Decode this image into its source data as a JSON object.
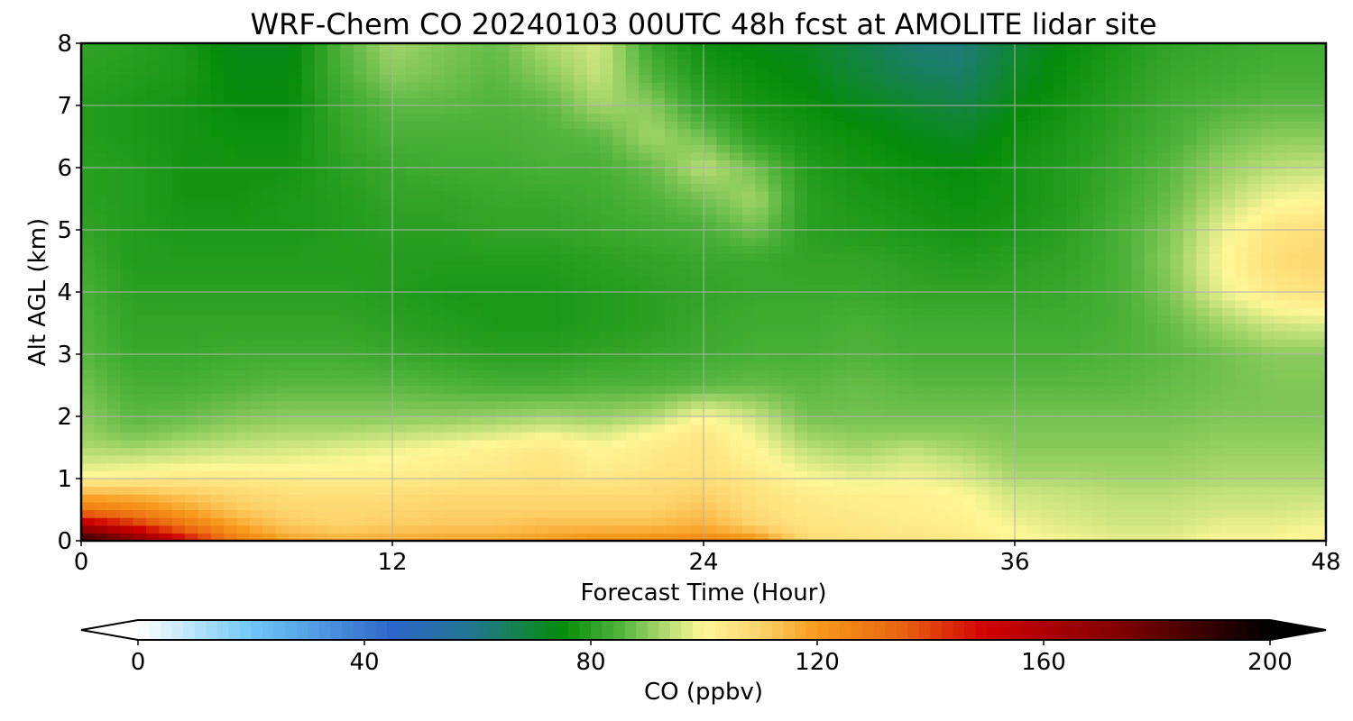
{
  "chart_data": {
    "type": "heatmap",
    "title": "WRF-Chem CO  20240103 00UTC 48h fcst at AMOLITE lidar site",
    "xlabel": "Forecast Time (Hour)",
    "ylabel": "Alt AGL (km)",
    "xlim": [
      0,
      48
    ],
    "ylim": [
      0,
      8
    ],
    "xticks": [
      0,
      12,
      24,
      36,
      48
    ],
    "yticks": [
      0,
      1,
      2,
      3,
      4,
      5,
      6,
      7,
      8
    ],
    "grid": true,
    "x": [
      0,
      2,
      4,
      6,
      8,
      10,
      12,
      14,
      16,
      18,
      20,
      22,
      24,
      26,
      28,
      30,
      32,
      34,
      36,
      38,
      40,
      42,
      44,
      46,
      48
    ],
    "y": [
      0,
      0.25,
      0.5,
      0.75,
      1,
      1.25,
      1.5,
      1.75,
      2,
      2.5,
      3,
      3.5,
      4,
      4.5,
      5,
      5.5,
      6,
      6.5,
      7,
      7.5,
      8
    ],
    "z": [
      [
        195,
        175,
        150,
        128,
        118,
        116,
        117,
        118,
        118,
        120,
        122,
        123,
        125,
        122,
        108,
        106,
        105,
        104,
        101,
        99,
        98,
        98,
        100,
        100,
        102
      ],
      [
        160,
        145,
        130,
        118,
        112,
        110,
        111,
        112,
        112,
        114,
        114,
        114,
        116,
        110,
        105,
        104,
        103,
        102,
        99,
        97,
        96,
        96,
        98,
        98,
        99
      ],
      [
        130,
        125,
        118,
        112,
        109,
        108,
        109,
        110,
        110,
        110,
        110,
        110,
        113,
        107,
        104,
        103,
        102,
        101,
        97,
        96,
        95,
        95,
        96,
        96,
        97
      ],
      [
        116,
        115,
        112,
        109,
        107,
        107,
        107,
        108,
        108,
        108,
        108,
        108,
        110,
        106,
        103,
        102,
        102,
        100,
        96,
        95,
        94,
        94,
        95,
        95,
        95
      ],
      [
        102,
        103,
        104,
        104,
        103,
        102,
        103,
        104,
        105,
        106,
        104,
        106,
        107,
        104,
        100,
        98,
        99,
        97,
        93,
        93,
        92,
        92,
        93,
        93,
        93
      ],
      [
        96,
        97,
        98,
        99,
        99,
        100,
        101,
        102,
        103,
        105,
        102,
        104,
        106,
        102,
        97,
        95,
        97,
        95,
        91,
        91,
        91,
        91,
        92,
        92,
        92
      ],
      [
        93,
        92,
        94,
        95,
        96,
        97,
        98,
        100,
        102,
        104,
        100,
        103,
        105,
        100,
        94,
        92,
        94,
        92,
        90,
        90,
        90,
        90,
        91,
        91,
        91
      ],
      [
        91,
        88,
        90,
        92,
        93,
        93,
        94,
        95,
        96,
        98,
        96,
        100,
        104,
        98,
        91,
        90,
        90,
        90,
        89,
        89,
        89,
        89,
        90,
        90,
        90
      ],
      [
        90,
        86,
        87,
        89,
        90,
        90,
        90,
        90,
        91,
        92,
        91,
        93,
        100,
        95,
        88,
        88,
        88,
        88,
        88,
        88,
        88,
        88,
        89,
        89,
        89
      ],
      [
        88,
        84,
        84,
        85,
        86,
        86,
        86,
        85,
        84,
        84,
        85,
        85,
        86,
        87,
        86,
        87,
        86,
        86,
        86,
        86,
        86,
        87,
        88,
        89,
        89
      ],
      [
        86,
        82,
        82,
        83,
        83,
        83,
        82,
        81,
        80,
        80,
        81,
        82,
        83,
        84,
        84,
        85,
        84,
        84,
        84,
        84,
        85,
        86,
        88,
        90,
        90
      ],
      [
        85,
        81,
        81,
        81,
        81,
        81,
        80,
        79,
        78,
        78,
        79,
        80,
        82,
        83,
        83,
        84,
        83,
        83,
        83,
        83,
        84,
        87,
        92,
        96,
        97
      ],
      [
        84,
        80,
        80,
        80,
        80,
        80,
        79,
        78,
        78,
        78,
        79,
        80,
        81,
        82,
        82,
        82,
        81,
        81,
        81,
        82,
        84,
        89,
        98,
        104,
        106
      ],
      [
        83,
        79,
        79,
        79,
        79,
        79,
        79,
        79,
        79,
        79,
        80,
        81,
        82,
        82,
        81,
        81,
        80,
        79,
        80,
        81,
        84,
        90,
        100,
        107,
        109
      ],
      [
        81,
        79,
        78,
        78,
        78,
        79,
        80,
        80,
        81,
        81,
        82,
        83,
        84,
        88,
        80,
        79,
        78,
        77,
        78,
        80,
        84,
        89,
        98,
        105,
        107
      ],
      [
        80,
        79,
        77,
        77,
        78,
        79,
        81,
        81,
        82,
        82,
        83,
        85,
        88,
        92,
        80,
        78,
        77,
        76,
        77,
        79,
        83,
        87,
        94,
        99,
        100
      ],
      [
        80,
        79,
        77,
        77,
        77,
        80,
        82,
        83,
        83,
        84,
        84,
        87,
        94,
        88,
        79,
        77,
        76,
        75,
        77,
        79,
        82,
        86,
        91,
        94,
        95
      ],
      [
        79,
        78,
        77,
        76,
        76,
        81,
        84,
        84,
        84,
        85,
        86,
        92,
        88,
        80,
        77,
        76,
        74,
        72,
        76,
        78,
        81,
        84,
        88,
        90,
        90
      ],
      [
        79,
        78,
        77,
        75,
        75,
        82,
        86,
        86,
        85,
        86,
        92,
        90,
        81,
        77,
        76,
        73,
        71,
        68,
        74,
        77,
        80,
        83,
        85,
        86,
        86
      ],
      [
        80,
        79,
        78,
        74,
        74,
        84,
        90,
        88,
        86,
        90,
        95,
        85,
        78,
        76,
        74,
        70,
        66,
        64,
        72,
        76,
        79,
        82,
        83,
        84,
        84
      ],
      [
        81,
        80,
        78,
        73,
        73,
        85,
        92,
        89,
        87,
        93,
        96,
        82,
        76,
        74,
        72,
        68,
        63,
        62,
        70,
        75,
        78,
        81,
        82,
        83,
        83
      ]
    ],
    "colorbar": {
      "label": "CO  (ppbv)",
      "min": 0,
      "max": 200,
      "ticks": [
        0,
        40,
        80,
        120,
        160,
        200
      ],
      "extend": "both",
      "stops": [
        {
          "v": 0,
          "c": "#ffffff"
        },
        {
          "v": 20,
          "c": "#6fc8f8"
        },
        {
          "v": 45,
          "c": "#2d66c8"
        },
        {
          "v": 60,
          "c": "#21788a"
        },
        {
          "v": 75,
          "c": "#068c0a"
        },
        {
          "v": 85,
          "c": "#4fb33c"
        },
        {
          "v": 95,
          "c": "#c7e37c"
        },
        {
          "v": 100,
          "c": "#fff797"
        },
        {
          "v": 110,
          "c": "#fdd36a"
        },
        {
          "v": 120,
          "c": "#f89a1c"
        },
        {
          "v": 135,
          "c": "#e8630e"
        },
        {
          "v": 150,
          "c": "#d00000"
        },
        {
          "v": 175,
          "c": "#7a0000"
        },
        {
          "v": 200,
          "c": "#000000"
        }
      ]
    }
  }
}
